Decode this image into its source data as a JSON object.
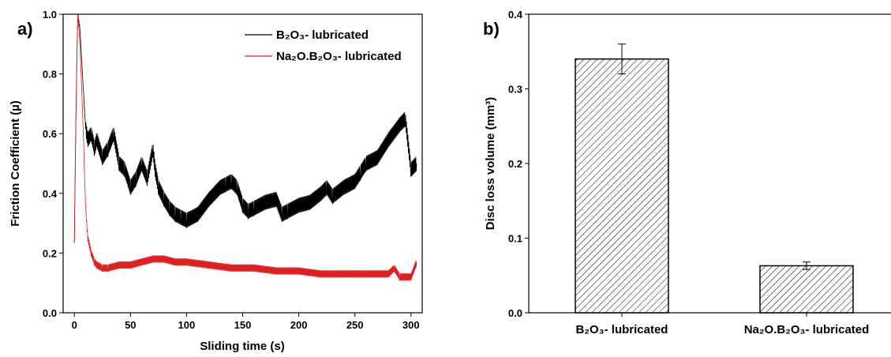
{
  "chart_data": [
    {
      "panel": "a)",
      "type": "line",
      "xlabel": "Sliding time (s)",
      "ylabel": "Friction Coefficient (µ)",
      "xlim": [
        -10,
        310
      ],
      "ylim": [
        0.0,
        1.0
      ],
      "x_ticks": [
        0,
        50,
        100,
        150,
        200,
        250,
        300
      ],
      "y_ticks": [
        "0.0",
        "0.2",
        "0.4",
        "0.6",
        "0.8",
        "1.0"
      ],
      "legend_position": "top-right",
      "series": [
        {
          "name": "B₂O₃- lubricated",
          "color": "#000000",
          "x": [
            0,
            1,
            2,
            3,
            5,
            8,
            10,
            12,
            15,
            18,
            20,
            25,
            30,
            35,
            40,
            45,
            50,
            55,
            60,
            65,
            70,
            72,
            75,
            80,
            85,
            90,
            95,
            100,
            110,
            120,
            130,
            135,
            140,
            145,
            150,
            155,
            160,
            170,
            180,
            185,
            190,
            200,
            210,
            220,
            225,
            230,
            240,
            250,
            255,
            260,
            270,
            280,
            290,
            295,
            300,
            305
          ],
          "y": [
            0.24,
            0.55,
            0.8,
            1.0,
            0.95,
            0.75,
            0.62,
            0.58,
            0.6,
            0.55,
            0.58,
            0.52,
            0.55,
            0.6,
            0.5,
            0.48,
            0.42,
            0.45,
            0.5,
            0.45,
            0.55,
            0.48,
            0.42,
            0.38,
            0.35,
            0.33,
            0.32,
            0.31,
            0.33,
            0.38,
            0.42,
            0.43,
            0.44,
            0.42,
            0.36,
            0.34,
            0.35,
            0.37,
            0.38,
            0.33,
            0.34,
            0.36,
            0.37,
            0.4,
            0.42,
            0.39,
            0.42,
            0.44,
            0.47,
            0.5,
            0.52,
            0.58,
            0.63,
            0.65,
            0.48,
            0.5
          ]
        },
        {
          "name": "Na₂O.B₂O₃- lubricated",
          "color": "#e02020",
          "x": [
            0,
            1,
            2,
            3,
            5,
            8,
            10,
            12,
            15,
            18,
            20,
            25,
            30,
            40,
            50,
            60,
            70,
            80,
            90,
            100,
            120,
            140,
            160,
            180,
            200,
            220,
            240,
            260,
            280,
            285,
            290,
            300,
            305
          ],
          "y": [
            0.24,
            0.55,
            0.8,
            1.0,
            0.9,
            0.6,
            0.35,
            0.25,
            0.2,
            0.17,
            0.16,
            0.15,
            0.15,
            0.16,
            0.16,
            0.17,
            0.18,
            0.18,
            0.17,
            0.17,
            0.16,
            0.15,
            0.15,
            0.14,
            0.14,
            0.13,
            0.13,
            0.13,
            0.13,
            0.15,
            0.12,
            0.12,
            0.17
          ]
        }
      ]
    },
    {
      "panel": "b)",
      "type": "bar",
      "ylabel": "Disc loss volume (mm³)",
      "ylim": [
        0.0,
        0.4
      ],
      "y_ticks": [
        "0.0",
        "0.1",
        "0.2",
        "0.3",
        "0.4"
      ],
      "categories": [
        "B₂O₃- lubricated",
        "Na₂O.B₂O₃- lubricated"
      ],
      "values": [
        0.34,
        0.063
      ],
      "errors": [
        0.02,
        0.005
      ],
      "bar_fill": "hatched"
    }
  ]
}
